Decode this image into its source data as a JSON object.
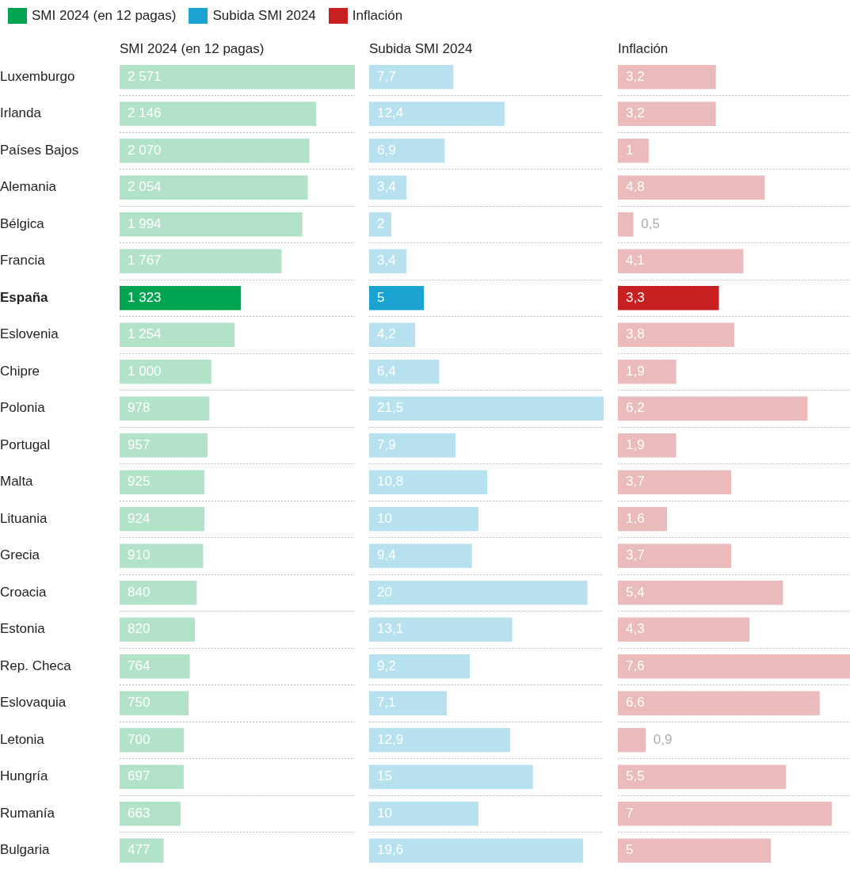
{
  "chart_data": [
    {
      "type": "bar",
      "orientation": "horizontal",
      "title": "SMI 2024 (en 12 pagas)",
      "legend": "top left",
      "grid": "y",
      "tick_labels": "y",
      "categories": [
        "Luxemburgo",
        "Irlanda",
        "Países Bajos",
        "Alemania",
        "Bélgica",
        "Francia",
        "España",
        "Eslovenia",
        "Chipre",
        "Polonia",
        "Portugal",
        "Malta",
        "Lituania",
        "Grecia",
        "Croacia",
        "Estonia",
        "Rep. Checa",
        "Eslovaquia",
        "Letonia",
        "Hungría",
        "Rumanía",
        "Bulgaria"
      ],
      "series": [
        {
          "name": "SMI 2024 (en 12 pagas)",
          "color": "#00a450",
          "colors": [
            "#b2e2c8",
            "#b2e2c8",
            "#b2e2c8",
            "#b2e2c8",
            "#b2e2c8",
            "#b2e2c8",
            "#00a450",
            "#b2e2c8",
            "#b2e2c8",
            "#b2e2c8",
            "#b2e2c8",
            "#b2e2c8",
            "#b2e2c8",
            "#b2e2c8",
            "#b2e2c8",
            "#b2e2c8",
            "#b2e2c8",
            "#b2e2c8",
            "#b2e2c8",
            "#b2e2c8",
            "#b2e2c8",
            "#b2e2c8"
          ],
          "values": [
            2571,
            2146,
            2070,
            2054,
            1994,
            1767,
            1323,
            1254,
            1000,
            978,
            957,
            925,
            924,
            910,
            840,
            820,
            764,
            750,
            700,
            697,
            663,
            477
          ],
          "value_labels": [
            "2 571",
            "2 146",
            "2 070",
            "2 054",
            "1 994",
            "1 767",
            "1 323",
            "1 254",
            "1 000",
            "978",
            "957",
            "925",
            "924",
            "910",
            "840",
            "820",
            "764",
            "750",
            "700",
            "697",
            "663",
            "477"
          ]
        }
      ]
    },
    {
      "type": "bar",
      "orientation": "horizontal",
      "title": "Subida SMI 2024",
      "legend": "top left",
      "grid": "y",
      "tick_labels": false,
      "series": [
        {
          "name": "Subida SMI 2024",
          "color": "#1aa3d0",
          "colors": [
            "#b7e1ef",
            "#b7e1ef",
            "#b7e1ef",
            "#b7e1ef",
            "#b7e1ef",
            "#b7e1ef",
            "#1aa3d0",
            "#b7e1ef",
            "#b7e1ef",
            "#b7e1ef",
            "#b7e1ef",
            "#b7e1ef",
            "#b7e1ef",
            "#b7e1ef",
            "#b7e1ef",
            "#b7e1ef",
            "#b7e1ef",
            "#b7e1ef",
            "#b7e1ef",
            "#b7e1ef",
            "#b7e1ef",
            "#b7e1ef"
          ],
          "values": [
            7.7,
            12.4,
            6.9,
            3.4,
            2,
            3.4,
            5,
            4.2,
            6.4,
            21.5,
            7.9,
            10.8,
            10,
            9.4,
            20,
            13.1,
            9.2,
            7.1,
            12.9,
            15,
            10,
            19.6
          ],
          "value_labels": [
            "7,7",
            "12,4",
            "6,9",
            "3,4",
            "2",
            "3,4",
            "5",
            "4,2",
            "6,4",
            "21,5",
            "7,9",
            "10,8",
            "10",
            "9,4",
            "20",
            "13,1",
            "9,2",
            "7,1",
            "12,9",
            "15",
            "10",
            "19,6"
          ]
        }
      ]
    },
    {
      "type": "bar",
      "orientation": "horizontal",
      "title": "Inflación",
      "legend": "top left",
      "grid": "y",
      "tick_labels": false,
      "series": [
        {
          "name": "Inflación",
          "color": "#c82021",
          "colors": [
            "#ebbaba",
            "#ebbaba",
            "#ebbaba",
            "#ebbaba",
            "#ebbaba",
            "#ebbaba",
            "#c82021",
            "#ebbaba",
            "#ebbaba",
            "#ebbaba",
            "#ebbaba",
            "#ebbaba",
            "#ebbaba",
            "#ebbaba",
            "#ebbaba",
            "#ebbaba",
            "#ebbaba",
            "#ebbaba",
            "#ebbaba",
            "#ebbaba",
            "#ebbaba",
            "#ebbaba"
          ],
          "values": [
            3.2,
            3.2,
            1,
            4.8,
            0.5,
            4.1,
            3.3,
            3.8,
            1.9,
            6.2,
            1.9,
            3.7,
            1.6,
            3.7,
            5.4,
            4.3,
            7.6,
            6.6,
            0.9,
            5.5,
            7,
            5
          ],
          "value_labels": [
            "3,2",
            "3,2",
            "1",
            "4,8",
            "0,5",
            "4,1",
            "3,3",
            "3,8",
            "1,9",
            "6,2",
            "1,9",
            "3,7",
            "1,6",
            "3,7",
            "5,4",
            "4,3",
            "7,6",
            "6,6",
            "0,9",
            "5,5",
            "7",
            "5"
          ]
        }
      ]
    }
  ]
}
